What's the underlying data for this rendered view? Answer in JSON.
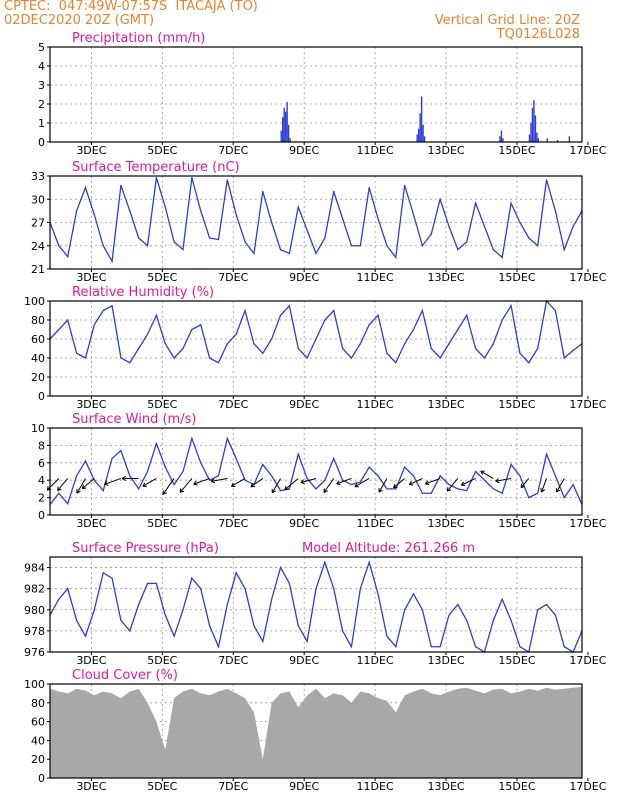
{
  "header": {
    "left_line1": "CPTEC:  047:49W-07:57S  ITACAJA (TO)",
    "left_line2": "02DEC2020 20Z (GMT)",
    "right_line1": "Vertical Grid Line: 20Z",
    "right_line2": "TQ0126L028"
  },
  "x_axis": {
    "start_hour": 0,
    "end_hour": 360,
    "tick_labels": [
      "3DEC",
      "5DEC",
      "7DEC",
      "9DEC",
      "11DEC",
      "13DEC",
      "15DEC",
      "17DEC"
    ],
    "tick_hours": [
      28,
      76,
      124,
      172,
      220,
      268,
      316,
      364
    ]
  },
  "colors": {
    "series": "#2c3fd4",
    "cloud": "#a8a8a8",
    "title": "#e0199b",
    "header": "#e8842c",
    "wind_arrow": "#000000"
  },
  "chart_data": [
    {
      "id": "precip",
      "type": "bar",
      "title": "Precipitation (mm/h)",
      "ylim": [
        0,
        5
      ],
      "yticks": [
        0,
        1,
        2,
        3,
        4,
        5
      ],
      "bars": [
        [
          156,
          0.6
        ],
        [
          157,
          1.3
        ],
        [
          158,
          1.8
        ],
        [
          159,
          1.6
        ],
        [
          160,
          2.1
        ],
        [
          161,
          0.9
        ],
        [
          162,
          0.2
        ],
        [
          248,
          0.4
        ],
        [
          249,
          0.7
        ],
        [
          250,
          1.5
        ],
        [
          251,
          2.4
        ],
        [
          252,
          0.9
        ],
        [
          253,
          0.3
        ],
        [
          304,
          0.3
        ],
        [
          305,
          0.6
        ],
        [
          306,
          0.2
        ],
        [
          324,
          0.4
        ],
        [
          325,
          1.0
        ],
        [
          326,
          1.8
        ],
        [
          327,
          2.2
        ],
        [
          328,
          1.4
        ],
        [
          329,
          0.5
        ],
        [
          330,
          0.2
        ],
        [
          336,
          0.2
        ],
        [
          343,
          0.1
        ],
        [
          351,
          0.3
        ]
      ]
    },
    {
      "id": "temp",
      "type": "line",
      "title": "Surface Temperature (nC)",
      "ylim": [
        21,
        33
      ],
      "yticks": [
        21,
        24,
        27,
        30,
        33
      ],
      "x": [
        0,
        6,
        12,
        18,
        24,
        30,
        36,
        42,
        48,
        54,
        60,
        66,
        72,
        78,
        84,
        90,
        96,
        102,
        108,
        114,
        120,
        126,
        132,
        138,
        144,
        150,
        156,
        162,
        168,
        174,
        180,
        186,
        192,
        198,
        204,
        210,
        216,
        222,
        228,
        234,
        240,
        246,
        252,
        258,
        264,
        270,
        276,
        282,
        288,
        294,
        300,
        306,
        312,
        318,
        324,
        330,
        336,
        342,
        348,
        354,
        360
      ],
      "y": [
        27.0,
        24.0,
        22.6,
        28.5,
        31.5,
        28.0,
        24.0,
        22.0,
        31.8,
        28.5,
        25.0,
        24.0,
        32.8,
        29.0,
        24.5,
        23.5,
        32.8,
        28.5,
        25.0,
        24.8,
        32.5,
        28.0,
        24.5,
        23.0,
        31.0,
        27.0,
        23.5,
        23.0,
        29.0,
        26.0,
        23.0,
        25.0,
        31.0,
        27.5,
        24.0,
        24.0,
        31.5,
        27.5,
        24.0,
        22.5,
        31.8,
        28.0,
        24.0,
        25.5,
        30.0,
        26.5,
        23.5,
        24.5,
        29.5,
        26.5,
        23.5,
        22.5,
        29.5,
        27.0,
        25.0,
        24.0,
        32.5,
        28.5,
        23.5,
        26.5,
        28.5
      ]
    },
    {
      "id": "rh",
      "type": "line",
      "title": "Relative Humidity (%)",
      "ylim": [
        0,
        100
      ],
      "yticks": [
        0,
        20,
        40,
        60,
        80,
        100
      ],
      "x": [
        0,
        6,
        12,
        18,
        24,
        30,
        36,
        42,
        48,
        54,
        60,
        66,
        72,
        78,
        84,
        90,
        96,
        102,
        108,
        114,
        120,
        126,
        132,
        138,
        144,
        150,
        156,
        162,
        168,
        174,
        180,
        186,
        192,
        198,
        204,
        210,
        216,
        222,
        228,
        234,
        240,
        246,
        252,
        258,
        264,
        270,
        276,
        282,
        288,
        294,
        300,
        306,
        312,
        318,
        324,
        330,
        336,
        342,
        348,
        354,
        360
      ],
      "y": [
        60,
        70,
        80,
        45,
        40,
        75,
        90,
        95,
        40,
        35,
        50,
        65,
        85,
        55,
        40,
        50,
        70,
        75,
        40,
        35,
        55,
        65,
        90,
        55,
        45,
        60,
        85,
        95,
        50,
        40,
        60,
        80,
        90,
        50,
        40,
        55,
        75,
        85,
        45,
        35,
        55,
        70,
        90,
        50,
        40,
        55,
        70,
        85,
        50,
        40,
        55,
        80,
        95,
        45,
        35,
        50,
        100,
        90,
        40,
        48,
        55
      ]
    },
    {
      "id": "wind",
      "type": "line",
      "title": "Surface Wind (m/s)",
      "ylim": [
        0,
        10
      ],
      "yticks": [
        0,
        2,
        4,
        6,
        8,
        10
      ],
      "x": [
        0,
        6,
        12,
        18,
        24,
        30,
        36,
        42,
        48,
        54,
        60,
        66,
        72,
        78,
        84,
        90,
        96,
        102,
        108,
        114,
        120,
        126,
        132,
        138,
        144,
        150,
        156,
        162,
        168,
        174,
        180,
        186,
        192,
        198,
        204,
        210,
        216,
        222,
        228,
        234,
        240,
        246,
        252,
        258,
        264,
        270,
        276,
        282,
        288,
        294,
        300,
        306,
        312,
        318,
        324,
        330,
        336,
        342,
        348,
        354,
        360
      ],
      "y": [
        1.2,
        2.5,
        1.3,
        4.5,
        6.2,
        4.0,
        2.8,
        6.5,
        7.4,
        4.5,
        3.0,
        5.0,
        8.2,
        5.5,
        3.5,
        5.0,
        8.8,
        6.0,
        4.0,
        4.5,
        8.8,
        6.5,
        4.0,
        3.5,
        5.8,
        4.5,
        2.8,
        3.0,
        7.0,
        4.2,
        3.0,
        4.0,
        6.5,
        4.0,
        3.5,
        3.8,
        5.5,
        4.5,
        3.0,
        3.0,
        5.5,
        4.5,
        2.5,
        2.5,
        4.5,
        3.5,
        3.0,
        2.8,
        5.0,
        4.0,
        3.0,
        2.5,
        5.8,
        4.5,
        2.0,
        2.5,
        7.0,
        4.5,
        2.0,
        3.5,
        1.2
      ],
      "arrows": [
        [
          6,
          225,
          3.8
        ],
        [
          12,
          220,
          3.5
        ],
        [
          24,
          210,
          4.0
        ],
        [
          30,
          230,
          3.5
        ],
        [
          48,
          250,
          4.2
        ],
        [
          60,
          270,
          3.8
        ],
        [
          72,
          240,
          3.5
        ],
        [
          84,
          215,
          5.0
        ],
        [
          96,
          220,
          4.5
        ],
        [
          108,
          250,
          4.0
        ],
        [
          120,
          260,
          3.8
        ],
        [
          132,
          240,
          3.5
        ],
        [
          144,
          235,
          3.0
        ],
        [
          156,
          210,
          3.8
        ],
        [
          168,
          230,
          4.2
        ],
        [
          180,
          255,
          3.5
        ],
        [
          192,
          215,
          4.0
        ],
        [
          204,
          250,
          3.5
        ],
        [
          216,
          240,
          3.8
        ],
        [
          228,
          210,
          3.5
        ],
        [
          240,
          230,
          3.0
        ],
        [
          252,
          245,
          3.0
        ],
        [
          264,
          250,
          3.5
        ],
        [
          276,
          220,
          3.8
        ],
        [
          288,
          245,
          3.5
        ],
        [
          300,
          300,
          3.0
        ],
        [
          312,
          260,
          3.5
        ],
        [
          324,
          220,
          2.0
        ],
        [
          336,
          200,
          3.0
        ],
        [
          348,
          210,
          3.5
        ]
      ]
    },
    {
      "id": "pres",
      "type": "line",
      "title": "Surface Pressure (hPa)",
      "subtitle": "Model Altitude: 261.266 m",
      "ylim": [
        976,
        985
      ],
      "yticks": [
        976,
        978,
        980,
        982,
        984
      ],
      "x": [
        0,
        6,
        12,
        18,
        24,
        30,
        36,
        42,
        48,
        54,
        60,
        66,
        72,
        78,
        84,
        90,
        96,
        102,
        108,
        114,
        120,
        126,
        132,
        138,
        144,
        150,
        156,
        162,
        168,
        174,
        180,
        186,
        192,
        198,
        204,
        210,
        216,
        222,
        228,
        234,
        240,
        246,
        252,
        258,
        264,
        270,
        276,
        282,
        288,
        294,
        300,
        306,
        312,
        318,
        324,
        330,
        336,
        342,
        348,
        354,
        360
      ],
      "y": [
        979.5,
        981.0,
        982.0,
        979.0,
        977.5,
        980.0,
        983.5,
        983.0,
        979.0,
        978.0,
        980.5,
        982.5,
        982.5,
        979.5,
        977.5,
        980.0,
        983.0,
        982.0,
        978.5,
        976.5,
        980.5,
        983.5,
        982.0,
        978.5,
        977.0,
        981.0,
        984.0,
        982.5,
        978.5,
        977.0,
        982.0,
        984.5,
        982.0,
        978.0,
        976.5,
        982.0,
        984.5,
        981.5,
        977.5,
        976.5,
        980.0,
        981.5,
        980.0,
        976.5,
        976.5,
        979.5,
        980.5,
        979.0,
        976.5,
        976.0,
        979.0,
        981.0,
        979.0,
        976.5,
        976.0,
        980.0,
        980.5,
        979.5,
        976.5,
        976.0,
        978.0
      ]
    },
    {
      "id": "cloud",
      "type": "area",
      "title": "Cloud Cover (%)",
      "ylim": [
        0,
        100
      ],
      "yticks": [
        0,
        20,
        40,
        60,
        80,
        100
      ],
      "x": [
        0,
        6,
        12,
        18,
        24,
        30,
        36,
        42,
        48,
        54,
        60,
        66,
        72,
        78,
        84,
        90,
        96,
        102,
        108,
        114,
        120,
        126,
        132,
        138,
        144,
        150,
        156,
        162,
        168,
        174,
        180,
        186,
        192,
        198,
        204,
        210,
        216,
        222,
        228,
        234,
        240,
        246,
        252,
        258,
        264,
        270,
        276,
        282,
        288,
        294,
        300,
        306,
        312,
        318,
        324,
        330,
        336,
        342,
        348,
        354,
        360
      ],
      "y": [
        95,
        92,
        90,
        95,
        93,
        88,
        92,
        90,
        85,
        92,
        95,
        80,
        60,
        30,
        85,
        92,
        95,
        90,
        88,
        92,
        95,
        90,
        85,
        70,
        20,
        80,
        90,
        92,
        75,
        88,
        95,
        85,
        90,
        88,
        80,
        92,
        90,
        85,
        82,
        70,
        88,
        92,
        95,
        90,
        88,
        92,
        95,
        96,
        93,
        90,
        94,
        95,
        90,
        92,
        95,
        93,
        96,
        94,
        95,
        96,
        97
      ]
    }
  ]
}
